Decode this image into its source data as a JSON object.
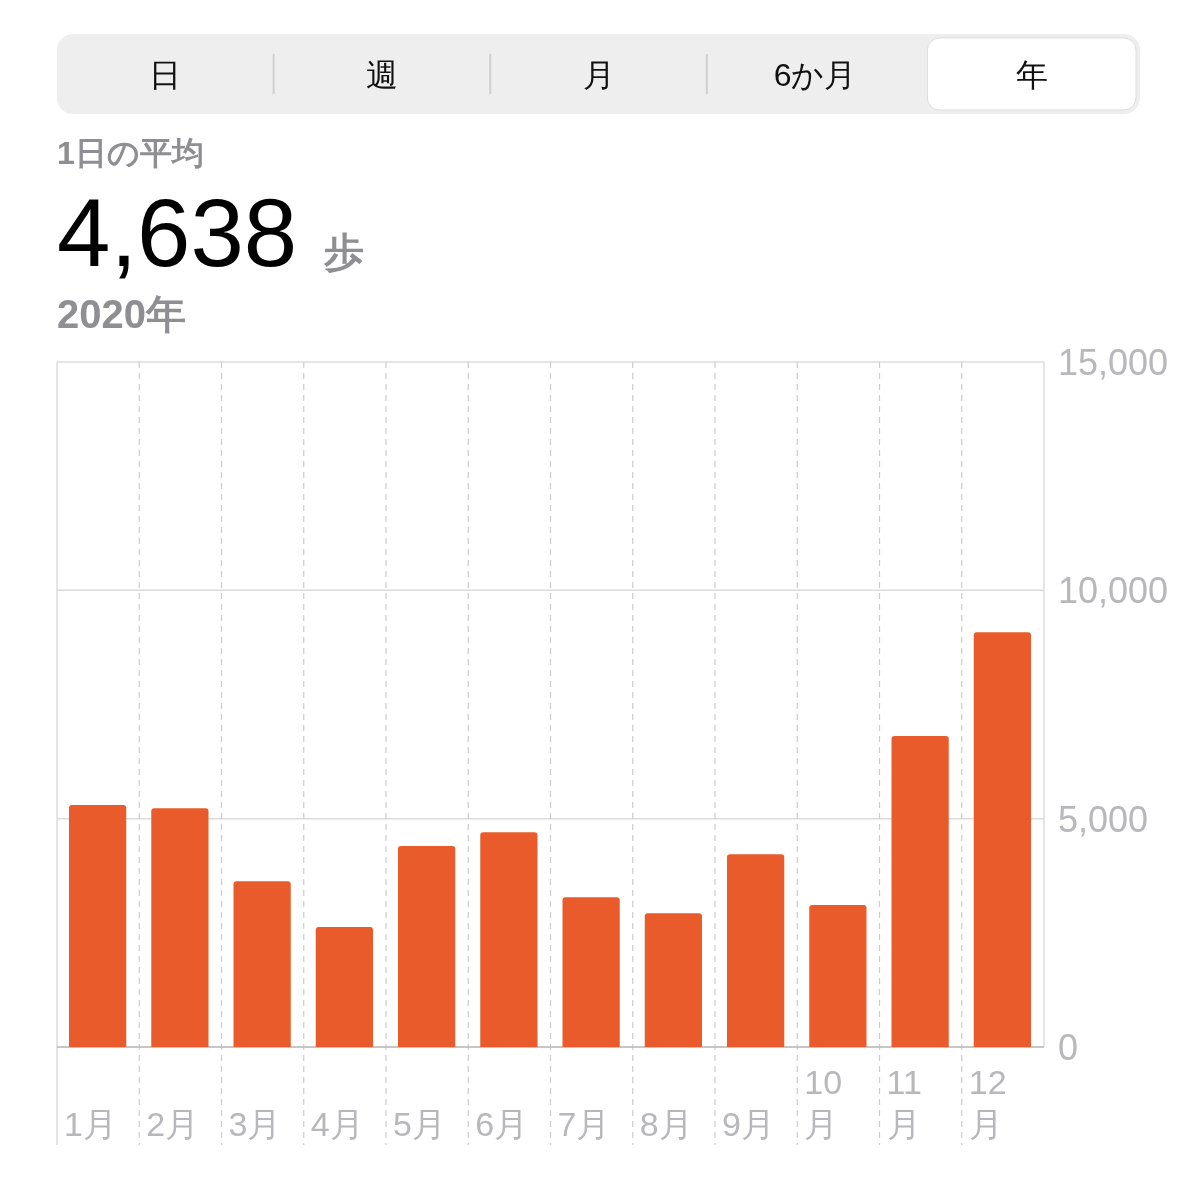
{
  "chart_data": {
    "type": "bar",
    "title": "1日の平均",
    "subtitle": "4,638 歩",
    "annotations": [
      "日",
      "週",
      "月",
      "6か月",
      "年",
      "2020年"
    ],
    "categories": [
      "1月",
      "2月",
      "3月",
      "4月",
      "5月",
      "6月",
      "7月",
      "8月",
      "9月",
      "10月",
      "11月",
      "12月"
    ],
    "values": [
      5300,
      5230,
      3630,
      2630,
      4400,
      4700,
      3280,
      2930,
      4220,
      3110,
      6810,
      9080
    ],
    "color": "#e95b2b",
    "ylim": [
      0,
      15000
    ],
    "yticks": [
      0,
      {
        "value": 5000,
        "label": "5,000"
      },
      {
        "value": 10000,
        "label": "10,000"
      },
      {
        "value": 15000,
        "label": "15,000"
      }
    ],
    "grid": true
  }
}
